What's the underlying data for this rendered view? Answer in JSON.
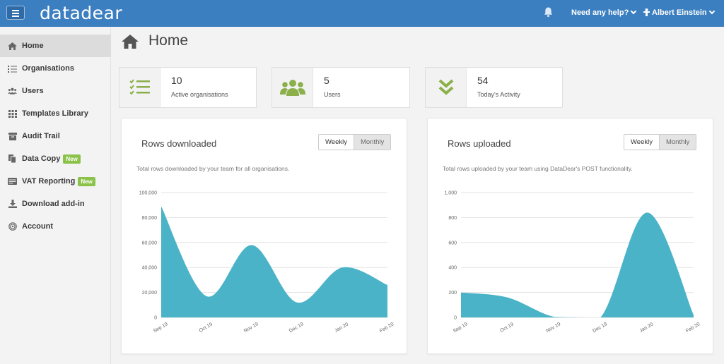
{
  "header": {
    "brand": "datadear",
    "help_label": "Need any help?",
    "user_name": "Albert Einstein"
  },
  "sidebar": {
    "items": [
      {
        "label": "Home",
        "icon": "home-icon"
      },
      {
        "label": "Organisations",
        "icon": "list-icon"
      },
      {
        "label": "Users",
        "icon": "users-icon"
      },
      {
        "label": "Templates Library",
        "icon": "grid-icon"
      },
      {
        "label": "Audit Trail",
        "icon": "archive-icon"
      },
      {
        "label": "Data Copy",
        "icon": "copy-icon",
        "badge": "New"
      },
      {
        "label": "VAT Reporting",
        "icon": "card-icon",
        "badge": "New"
      },
      {
        "label": "Download add-in",
        "icon": "download-icon"
      },
      {
        "label": "Account",
        "icon": "fingerprint-icon"
      }
    ]
  },
  "page": {
    "title": "Home"
  },
  "stats": [
    {
      "value": "10",
      "label": "Active organisations",
      "icon": "checklist-icon"
    },
    {
      "value": "5",
      "label": "Users",
      "icon": "users-icon"
    },
    {
      "value": "54",
      "label": "Today's Activity",
      "icon": "double-chevron-down-icon"
    }
  ],
  "panels": {
    "downloaded": {
      "title": "Rows downloaded",
      "description": "Total rows downloaded by your team for all organisations.",
      "toggle": [
        "Weekly",
        "Monthly"
      ]
    },
    "uploaded": {
      "title": "Rows uploaded",
      "description": "Total rows uploaded by your team using DataDear's POST functionality.",
      "toggle": [
        "Weekly",
        "Monthly"
      ]
    }
  },
  "colors": {
    "accent": "#3c7fc0",
    "fill": "#4ab3c7",
    "badge": "#8bc34a",
    "icon_green": "#8bb04a"
  },
  "chart_data": [
    {
      "type": "area",
      "x": [
        "Sep 19",
        "Oct 19",
        "Nov 19",
        "Dec 19",
        "Jan 20",
        "Feb 20"
      ],
      "values": [
        89000,
        17000,
        58000,
        12000,
        40000,
        26000
      ],
      "yticks": [
        "0",
        "20,000",
        "40,000",
        "60,000",
        "80,000",
        "100,000"
      ],
      "ylim": [
        0,
        100000
      ]
    },
    {
      "type": "area",
      "x": [
        "Sep 19",
        "Oct 19",
        "Nov 19",
        "Dec 19",
        "Jan 20",
        "Feb 20"
      ],
      "values": [
        200,
        160,
        5,
        0,
        840,
        20
      ],
      "yticks": [
        "0",
        "200",
        "400",
        "600",
        "800",
        "1,000"
      ],
      "ylim": [
        0,
        1000
      ]
    }
  ]
}
